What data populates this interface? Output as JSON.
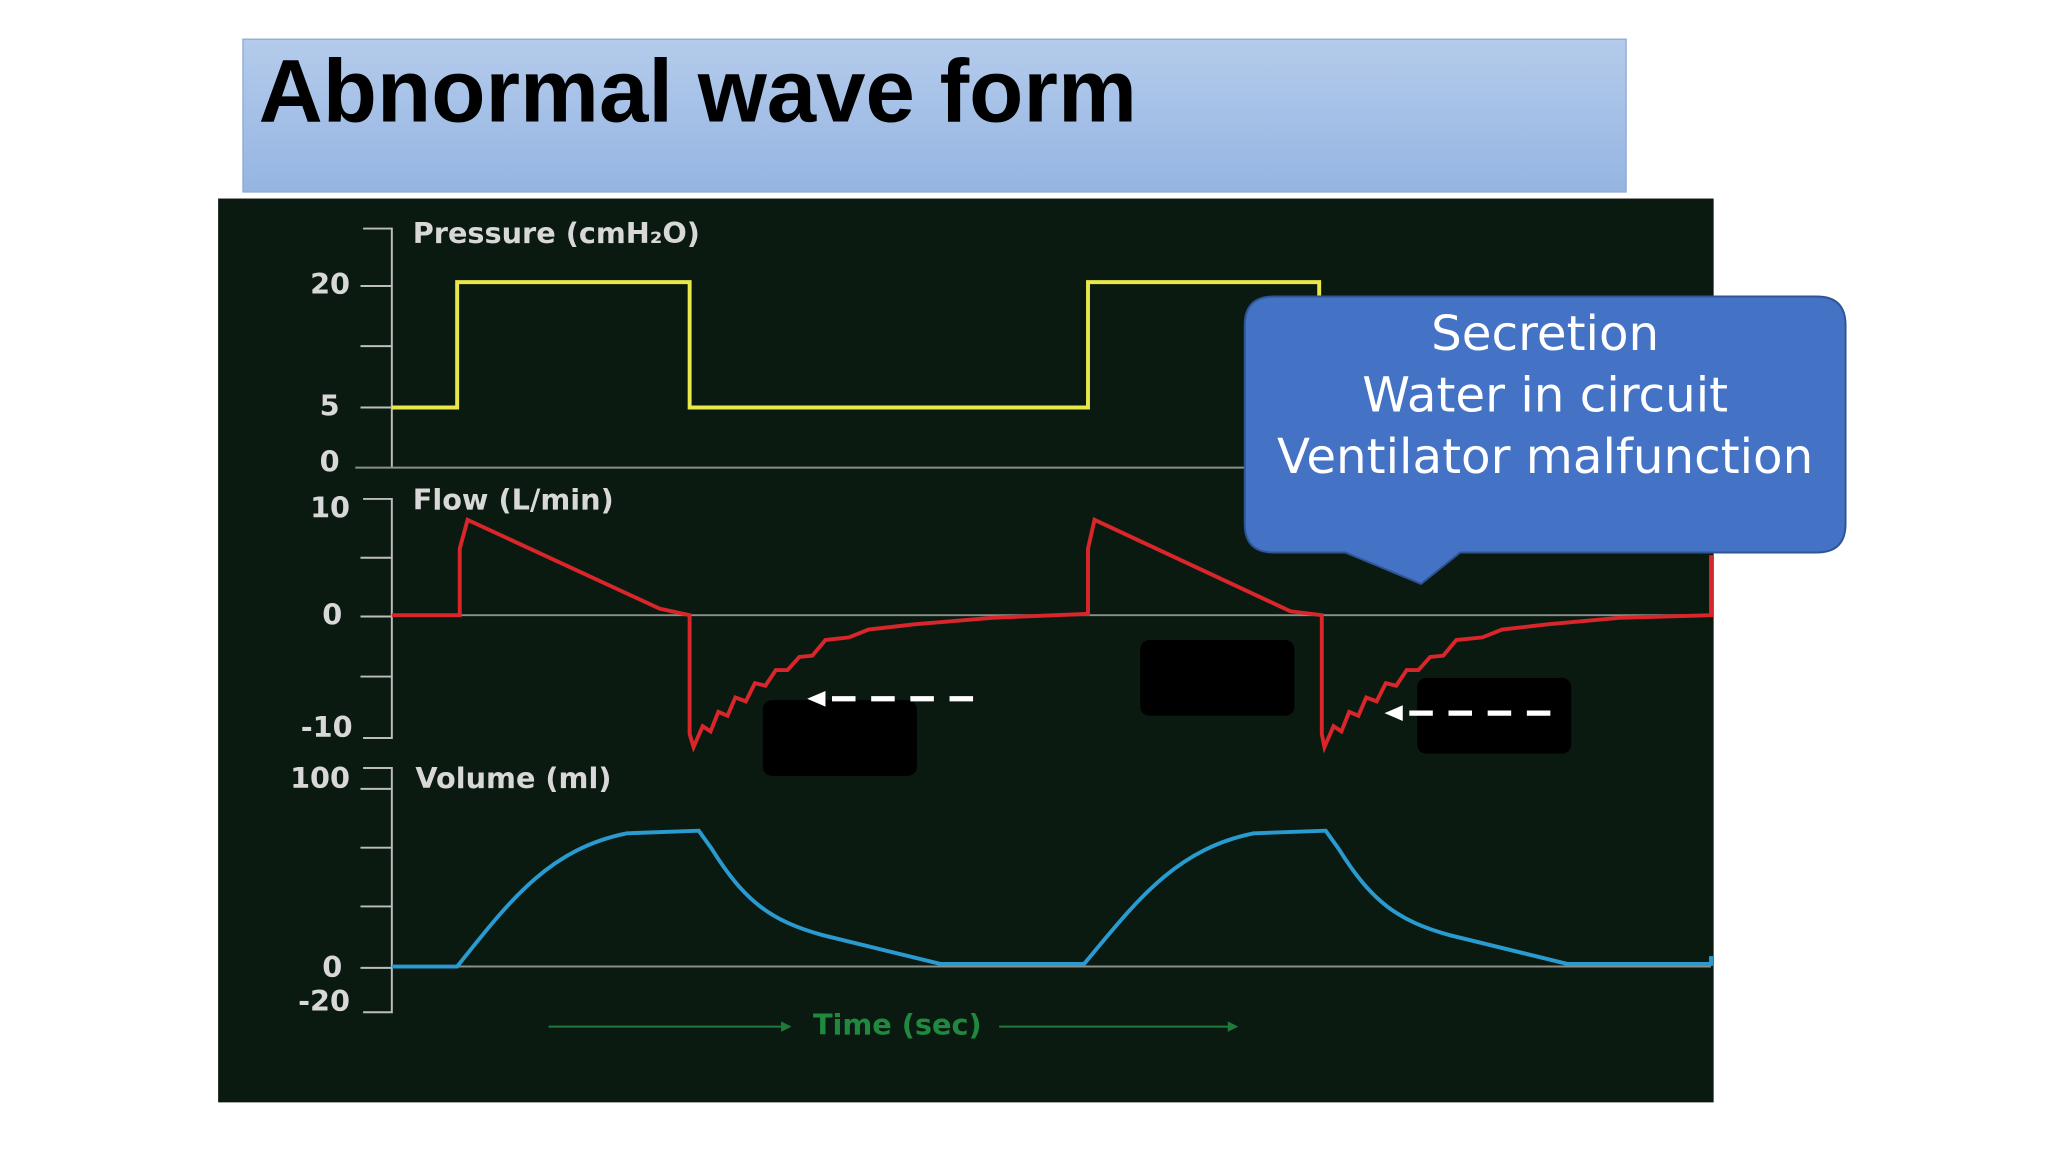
{
  "header": {
    "title": "Abnormal wave form"
  },
  "panels": [
    {
      "label": "Pressure (cmH₂O)",
      "ticks": [
        "20",
        "5",
        "0"
      ]
    },
    {
      "label": "Flow (L/min)",
      "ticks": [
        "10",
        "0",
        "-10"
      ]
    },
    {
      "label": "Volume (ml)",
      "ticks": [
        "100",
        "0",
        "-20"
      ]
    }
  ],
  "x_axis_label": "Time (sec)",
  "callout": {
    "lines": [
      "Secretion",
      "Water in circuit",
      "Ventilator malfunction"
    ]
  }
}
